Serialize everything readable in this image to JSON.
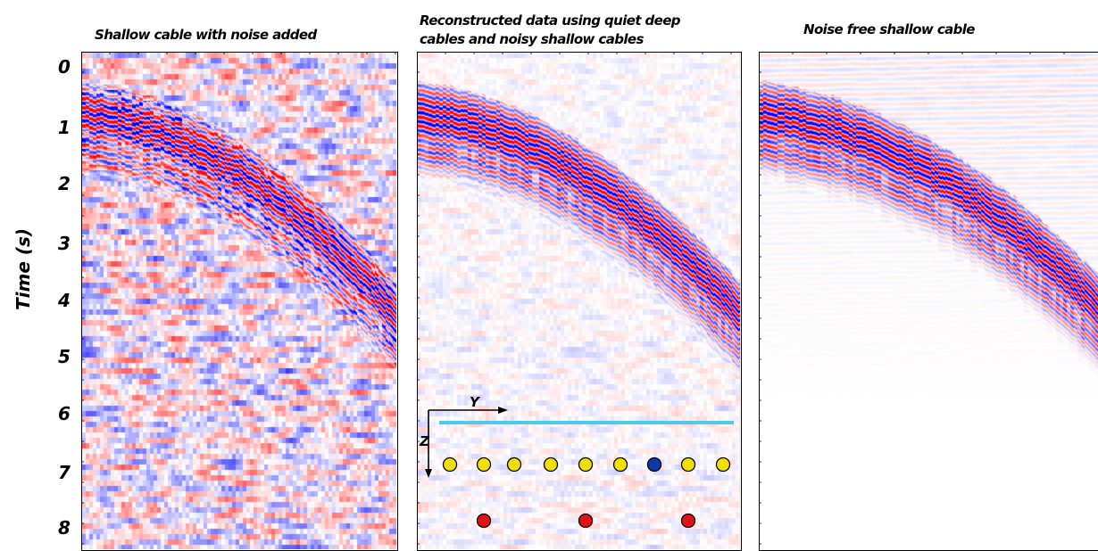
{
  "titles": {
    "panel1": "Shallow cable with noise added",
    "panel2_line1": "Reconstructed data using quiet deep",
    "panel2_line2": "cables and noisy shallow cables",
    "panel3": "Noise free shallow cable"
  },
  "axis": {
    "ylabel": "Time (s)",
    "ticks": [
      "0",
      "1",
      "2",
      "3",
      "4",
      "5",
      "6",
      "7",
      "8"
    ]
  },
  "inset": {
    "y_label": "Y",
    "z_label": "Z",
    "colors": {
      "surface_line": "#4ec9ee",
      "receiver_yellow": "#f1e000",
      "receiver_blue": "#0d3aa7",
      "receiver_red": "#e01414"
    }
  },
  "colors": {
    "positive": "#ff0000",
    "negative": "#0000ff"
  }
}
